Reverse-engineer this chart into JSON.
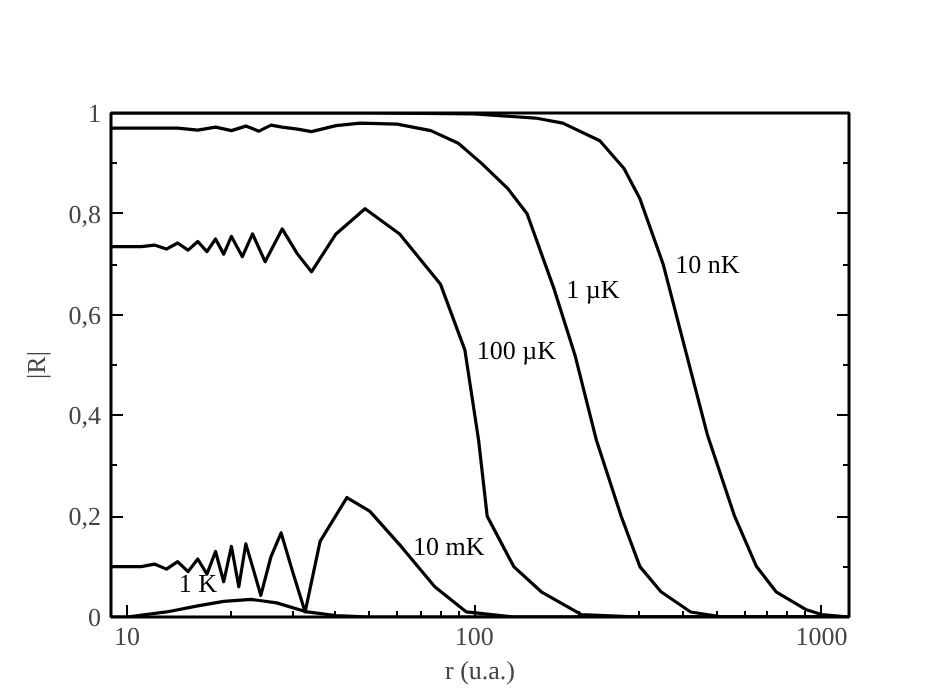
{
  "chart_data": {
    "type": "line",
    "xlabel": "r (u.a.)",
    "ylabel": "|R|",
    "log": "x",
    "grid": false,
    "marker": "none",
    "line_style": "solid",
    "xlim": [
      9,
      1200
    ],
    "ylim": [
      0,
      1
    ],
    "xticks": [
      10,
      {
        "value": 20,
        "label": null
      },
      {
        "value": 30,
        "label": null
      },
      {
        "value": 40,
        "label": null
      },
      {
        "value": 50,
        "label": null
      },
      {
        "value": 60,
        "label": null
      },
      {
        "value": 70,
        "label": null
      },
      {
        "value": 80,
        "label": null
      },
      {
        "value": 90,
        "label": null
      },
      100,
      {
        "value": 200,
        "label": null
      },
      {
        "value": 300,
        "label": null
      },
      {
        "value": 400,
        "label": null
      },
      {
        "value": 500,
        "label": null
      },
      {
        "value": 600,
        "label": null
      },
      {
        "value": 700,
        "label": null
      },
      {
        "value": 800,
        "label": null
      },
      {
        "value": 900,
        "label": null
      },
      1000
    ],
    "yticks": [
      0,
      {
        "value": 0.1,
        "label": null
      },
      {
        "value": 0.2,
        "label": "0,2"
      },
      {
        "value": 0.3,
        "label": null
      },
      {
        "value": 0.4,
        "label": "0,4"
      },
      {
        "value": 0.5,
        "label": null
      },
      {
        "value": 0.6,
        "label": "0,6"
      },
      {
        "value": 0.7,
        "label": null
      },
      {
        "value": 0.8,
        "label": "0,8"
      },
      {
        "value": 0.9,
        "label": null
      },
      1
    ],
    "series": [
      {
        "name": "10 nK",
        "color": "#000000",
        "x": [
          9,
          50,
          100,
          150,
          180,
          230,
          270,
          300,
          350,
          409,
          470,
          562,
          650,
          740,
          900,
          1000,
          1200
        ],
        "values": [
          1.0,
          1.0,
          0.998,
          0.99,
          0.98,
          0.945,
          0.89,
          0.83,
          0.7,
          0.52,
          0.36,
          0.2,
          0.1,
          0.05,
          0.015,
          0.005,
          0.0
        ]
      },
      {
        "name": "1 µK",
        "color": "#000000",
        "x": [
          9,
          14,
          16,
          18,
          20,
          22,
          24,
          26,
          28,
          31,
          34,
          40,
          47,
          60,
          75,
          90,
          105,
          125,
          142,
          170,
          195,
          225,
          265,
          300,
          345,
          420,
          520,
          1200
        ],
        "values": [
          0.97,
          0.97,
          0.966,
          0.972,
          0.965,
          0.974,
          0.964,
          0.976,
          0.972,
          0.968,
          0.963,
          0.975,
          0.98,
          0.978,
          0.965,
          0.94,
          0.9,
          0.85,
          0.8,
          0.65,
          0.52,
          0.35,
          0.2,
          0.1,
          0.05,
          0.01,
          0.0,
          0.0
        ]
      },
      {
        "name": "100 µK",
        "color": "#000000",
        "x": [
          9,
          11,
          12,
          13,
          14,
          15,
          16,
          17,
          18,
          19,
          20,
          21.5,
          23,
          25,
          28,
          31,
          34,
          40,
          48.5,
          61,
          80,
          94,
          103,
          109,
          130,
          156,
          203,
          300,
          1200
        ],
        "values": [
          0.735,
          0.735,
          0.738,
          0.73,
          0.742,
          0.728,
          0.745,
          0.725,
          0.75,
          0.72,
          0.755,
          0.715,
          0.76,
          0.705,
          0.77,
          0.72,
          0.685,
          0.76,
          0.81,
          0.76,
          0.66,
          0.53,
          0.35,
          0.2,
          0.1,
          0.05,
          0.005,
          0.0,
          0.0
        ]
      },
      {
        "name": "10 mK",
        "color": "#000000",
        "x": [
          9,
          11,
          12,
          13,
          14,
          15,
          16,
          17,
          18,
          19,
          20,
          21,
          22,
          23,
          24.3,
          26,
          27.8,
          30,
          32.6,
          36,
          43,
          50,
          61.6,
          77,
          95,
          130,
          1200
        ],
        "values": [
          0.1,
          0.1,
          0.105,
          0.095,
          0.11,
          0.09,
          0.115,
          0.085,
          0.13,
          0.07,
          0.14,
          0.06,
          0.145,
          0.1,
          0.043,
          0.12,
          0.167,
          0.09,
          0.01,
          0.15,
          0.237,
          0.21,
          0.14,
          0.06,
          0.01,
          0.0,
          0.0
        ]
      },
      {
        "name": "1 K",
        "color": "#000000",
        "x": [
          9,
          10,
          13,
          16,
          19,
          22.8,
          27,
          33,
          40,
          50,
          1200
        ],
        "values": [
          0.0,
          0.0,
          0.01,
          0.022,
          0.031,
          0.035,
          0.028,
          0.01,
          0.003,
          0.0,
          0.0
        ]
      }
    ]
  }
}
